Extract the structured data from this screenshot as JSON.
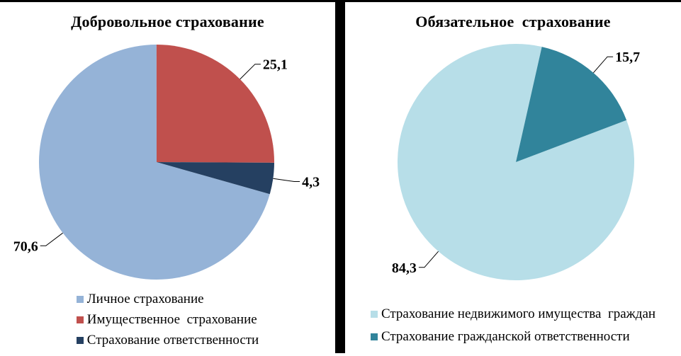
{
  "page": {
    "background_color": "#FFFFFF",
    "divider_color": "#000000",
    "text_color": "#000000"
  },
  "chart_data": [
    {
      "type": "pie",
      "title": "Добровольное страхование",
      "slices": [
        {
          "label": "Личное страхование",
          "value": 70.6,
          "value_label": "70,6",
          "color": "#95B3D7"
        },
        {
          "label": "Имущественное  страхование",
          "value": 25.1,
          "value_label": "25,1",
          "color": "#C0504D"
        },
        {
          "label": "Страхование ответственности",
          "value": 4.3,
          "value_label": "4,3",
          "color": "#254061"
        }
      ],
      "start_angle_deg": 105.8,
      "legend_position": "bottom",
      "data_labels": "outside-with-leader-lines",
      "value_format": "comma-decimal"
    },
    {
      "type": "pie",
      "title": "Обязательное  страхование",
      "slices": [
        {
          "label": "Страхование недвижимого имущества  граждан",
          "value": 84.3,
          "value_label": "84,3",
          "color": "#B7DEE8"
        },
        {
          "label": "Страхование гражданской ответственности",
          "value": 15.7,
          "value_label": "15,7",
          "color": "#31849B"
        }
      ],
      "start_angle_deg": 69.2,
      "legend_position": "bottom",
      "data_labels": "outside-with-leader-lines",
      "value_format": "comma-decimal"
    }
  ]
}
